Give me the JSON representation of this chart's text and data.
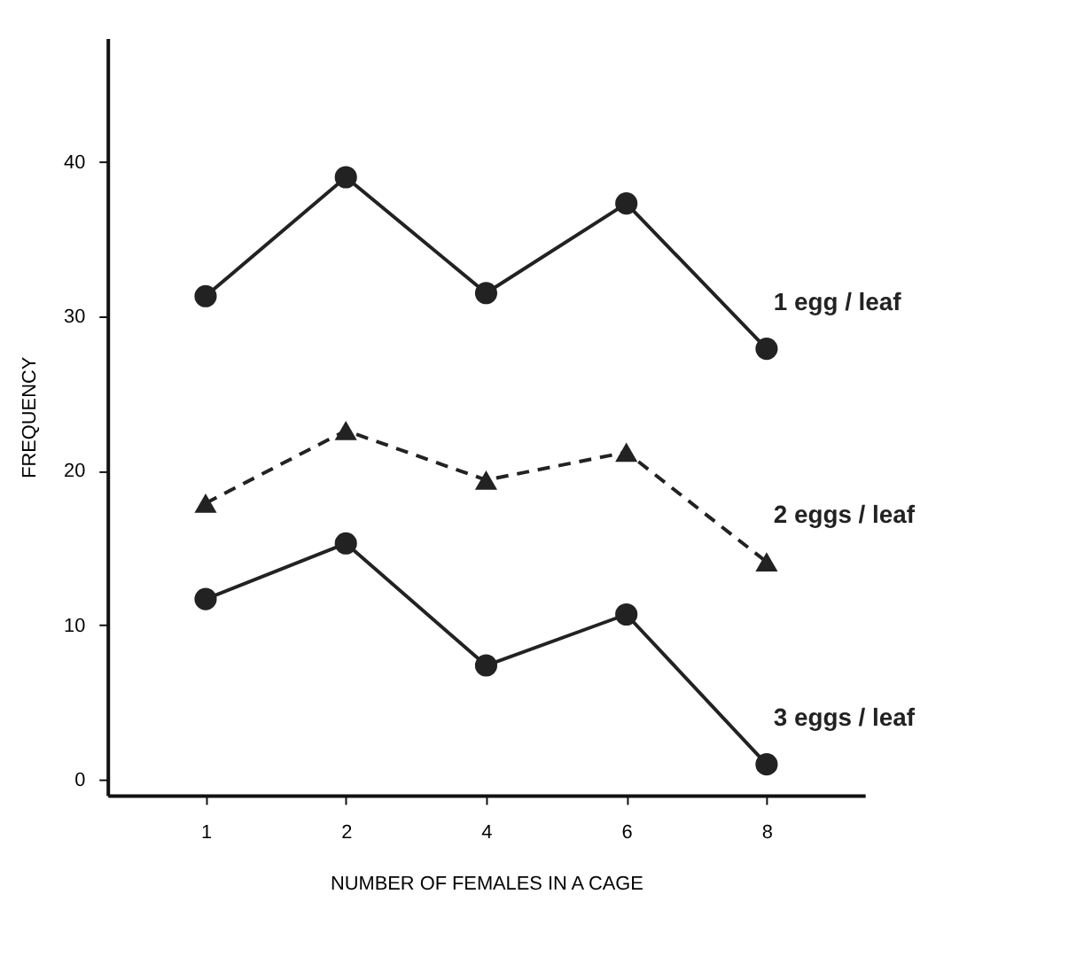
{
  "chart_data": {
    "type": "line",
    "xlabel": "NUMBER OF FEMALES IN A CAGE",
    "ylabel": "FREQUENCY",
    "categories": [
      "1",
      "2",
      "4",
      "6",
      "8"
    ],
    "series": [
      {
        "name": "1 egg / leaf",
        "color": "#222222",
        "marker": "circle",
        "line_style": "solid",
        "values": [
          31.3,
          39.0,
          31.5,
          37.3,
          27.9
        ]
      },
      {
        "name": "2 eggs / leaf",
        "color": "#222222",
        "marker": "triangle",
        "line_style": "dashed",
        "values": [
          17.9,
          22.6,
          19.4,
          21.2,
          14.1
        ]
      },
      {
        "name": "3 eggs / leaf",
        "color": "#222222",
        "marker": "circle",
        "line_style": "solid",
        "values": [
          11.7,
          15.3,
          7.4,
          10.7,
          1.0
        ]
      }
    ],
    "ylim": [
      -1,
      48
    ],
    "yticks": [
      0,
      10,
      20,
      30,
      40
    ],
    "grid": false,
    "legend": false
  }
}
